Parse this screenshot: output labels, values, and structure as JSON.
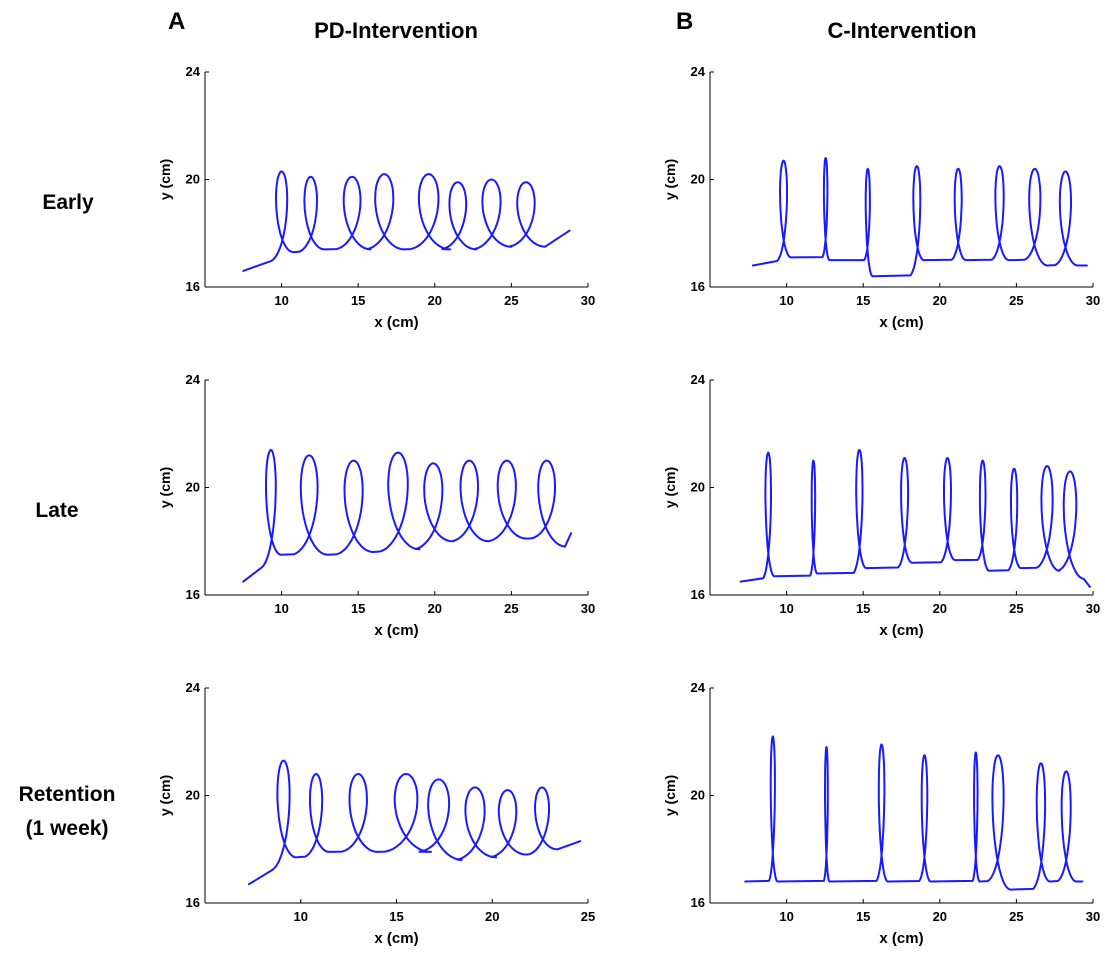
{
  "panel_letters": [
    "A",
    "B"
  ],
  "column_titles": [
    "PD-Intervention",
    "C-Intervention"
  ],
  "row_labels": [
    [
      "Early"
    ],
    [
      "Late"
    ],
    [
      "Retention",
      "(1 week)"
    ]
  ],
  "colors": {
    "trace": "#1a1aff",
    "axis": "#000000"
  },
  "chart_data": [
    {
      "type": "line",
      "column": "PD-Intervention",
      "row": "Early",
      "xlabel": "x (cm)",
      "ylabel": "y (cm)",
      "xlim": [
        5,
        30
      ],
      "ylim": [
        16,
        24
      ],
      "xticks": [
        10,
        15,
        20,
        25,
        30
      ],
      "yticks": [
        16,
        20,
        24
      ],
      "series": [
        {
          "x0": 7.5,
          "y0": 16.6,
          "xend": 28.8,
          "yend": 18.1,
          "loops": [
            {
              "x": 10.8,
              "top": 20.3,
              "bottom": 17.3,
              "w": 1.6
            },
            {
              "x": 12.8,
              "top": 20.1,
              "bottom": 17.4,
              "w": 1.8
            },
            {
              "x": 15.8,
              "top": 20.1,
              "bottom": 17.4,
              "w": 2.4
            },
            {
              "x": 18.0,
              "top": 20.2,
              "bottom": 17.4,
              "w": 2.6
            },
            {
              "x": 21.0,
              "top": 20.2,
              "bottom": 17.4,
              "w": 2.8
            },
            {
              "x": 22.7,
              "top": 19.9,
              "bottom": 17.4,
              "w": 2.4
            },
            {
              "x": 25.0,
              "top": 20.0,
              "bottom": 17.5,
              "w": 2.6
            },
            {
              "x": 27.2,
              "top": 19.9,
              "bottom": 17.5,
              "w": 2.5
            }
          ]
        }
      ]
    },
    {
      "type": "line",
      "column": "C-Intervention",
      "row": "Early",
      "xlabel": "x (cm)",
      "ylabel": "y (cm)",
      "xlim": [
        5,
        30
      ],
      "ylim": [
        16,
        24
      ],
      "xticks": [
        10,
        15,
        20,
        25,
        30
      ],
      "yticks": [
        16,
        20,
        24
      ],
      "series": [
        {
          "x0": 7.8,
          "y0": 16.8,
          "xend": 29.6,
          "yend": 16.8,
          "loops": [
            {
              "x": 10.3,
              "top": 20.7,
              "bottom": 17.1,
              "w": 1.0
            },
            {
              "x": 12.8,
              "top": 20.8,
              "bottom": 17.0,
              "w": 0.5
            },
            {
              "x": 15.6,
              "top": 20.4,
              "bottom": 16.4,
              "w": 0.6
            },
            {
              "x": 19.0,
              "top": 20.5,
              "bottom": 17.0,
              "w": 1.0
            },
            {
              "x": 21.7,
              "top": 20.4,
              "bottom": 17.0,
              "w": 1.0
            },
            {
              "x": 24.5,
              "top": 20.5,
              "bottom": 17.0,
              "w": 1.2
            },
            {
              "x": 27.0,
              "top": 20.4,
              "bottom": 16.8,
              "w": 1.6
            },
            {
              "x": 29.0,
              "top": 20.3,
              "bottom": 16.8,
              "w": 1.6
            }
          ]
        }
      ]
    },
    {
      "type": "line",
      "column": "PD-Intervention",
      "row": "Late",
      "xlabel": "x (cm)",
      "ylabel": "y (cm)",
      "xlim": [
        5,
        30
      ],
      "ylim": [
        16,
        24
      ],
      "xticks": [
        10,
        15,
        20,
        25,
        30
      ],
      "yticks": [
        16,
        20,
        24
      ],
      "series": [
        {
          "x0": 7.5,
          "y0": 16.5,
          "xend": 28.9,
          "yend": 18.3,
          "loops": [
            {
              "x": 10.0,
              "top": 21.4,
              "bottom": 17.5,
              "w": 1.4
            },
            {
              "x": 13.0,
              "top": 21.2,
              "bottom": 17.5,
              "w": 2.4
            },
            {
              "x": 16.0,
              "top": 21.0,
              "bottom": 17.6,
              "w": 2.6
            },
            {
              "x": 19.0,
              "top": 21.3,
              "bottom": 17.7,
              "w": 2.8
            },
            {
              "x": 21.2,
              "top": 20.9,
              "bottom": 18.0,
              "w": 2.6
            },
            {
              "x": 23.5,
              "top": 21.0,
              "bottom": 18.0,
              "w": 2.5
            },
            {
              "x": 26.0,
              "top": 21.0,
              "bottom": 18.1,
              "w": 2.6
            },
            {
              "x": 28.5,
              "top": 21.0,
              "bottom": 17.8,
              "w": 2.4
            }
          ]
        }
      ]
    },
    {
      "type": "line",
      "column": "C-Intervention",
      "row": "Late",
      "xlabel": "x (cm)",
      "ylabel": "y (cm)",
      "xlim": [
        5,
        30
      ],
      "ylim": [
        16,
        24
      ],
      "xticks": [
        10,
        15,
        20,
        25,
        30
      ],
      "yticks": [
        16,
        20,
        24
      ],
      "series": [
        {
          "x0": 7.0,
          "y0": 16.5,
          "xend": 29.8,
          "yend": 16.3,
          "loops": [
            {
              "x": 9.2,
              "top": 21.3,
              "bottom": 16.7,
              "w": 0.8
            },
            {
              "x": 12.0,
              "top": 21.0,
              "bottom": 16.8,
              "w": 0.5
            },
            {
              "x": 15.2,
              "top": 21.4,
              "bottom": 17.0,
              "w": 0.9
            },
            {
              "x": 18.2,
              "top": 21.1,
              "bottom": 17.2,
              "w": 1.0
            },
            {
              "x": 21.0,
              "top": 21.1,
              "bottom": 17.3,
              "w": 1.0
            },
            {
              "x": 23.2,
              "top": 21.0,
              "bottom": 16.9,
              "w": 0.8
            },
            {
              "x": 25.3,
              "top": 20.7,
              "bottom": 17.0,
              "w": 0.9
            },
            {
              "x": 27.8,
              "top": 20.8,
              "bottom": 16.9,
              "w": 1.6
            },
            {
              "x": 29.4,
              "top": 20.6,
              "bottom": 16.6,
              "w": 1.8
            }
          ]
        }
      ]
    },
    {
      "type": "line",
      "column": "PD-Intervention",
      "row": "Retention (1 week)",
      "xlabel": "x (cm)",
      "ylabel": "y (cm)",
      "xlim": [
        5,
        25
      ],
      "ylim": [
        16,
        24
      ],
      "xticks": [
        10,
        15,
        20,
        25
      ],
      "yticks": [
        16,
        20,
        24
      ],
      "series": [
        {
          "x0": 7.3,
          "y0": 16.7,
          "xend": 24.6,
          "yend": 18.3,
          "loops": [
            {
              "x": 9.8,
              "top": 21.3,
              "bottom": 17.7,
              "w": 1.4
            },
            {
              "x": 11.5,
              "top": 20.8,
              "bottom": 17.9,
              "w": 1.4
            },
            {
              "x": 14.0,
              "top": 20.8,
              "bottom": 17.9,
              "w": 2.0
            },
            {
              "x": 16.8,
              "top": 20.8,
              "bottom": 17.9,
              "w": 2.6
            },
            {
              "x": 18.4,
              "top": 20.6,
              "bottom": 17.6,
              "w": 2.4
            },
            {
              "x": 20.2,
              "top": 20.3,
              "bottom": 17.7,
              "w": 2.2
            },
            {
              "x": 21.8,
              "top": 20.2,
              "bottom": 17.8,
              "w": 2.0
            },
            {
              "x": 23.4,
              "top": 20.3,
              "bottom": 18.0,
              "w": 1.6
            }
          ]
        }
      ]
    },
    {
      "type": "line",
      "column": "C-Intervention",
      "row": "Retention (1 week)",
      "xlabel": "x (cm)",
      "ylabel": "y (cm)",
      "xlim": [
        5,
        30
      ],
      "ylim": [
        16,
        24
      ],
      "xticks": [
        10,
        15,
        20,
        25,
        30
      ],
      "yticks": [
        16,
        20,
        24
      ],
      "series": [
        {
          "x0": 7.3,
          "y0": 16.8,
          "xend": 29.3,
          "yend": 16.8,
          "loops": [
            {
              "x": 9.4,
              "top": 22.2,
              "bottom": 16.8,
              "w": 0.6
            },
            {
              "x": 12.8,
              "top": 21.8,
              "bottom": 16.8,
              "w": 0.4
            },
            {
              "x": 16.6,
              "top": 21.9,
              "bottom": 16.8,
              "w": 0.8
            },
            {
              "x": 19.4,
              "top": 21.5,
              "bottom": 16.8,
              "w": 0.8
            },
            {
              "x": 22.6,
              "top": 21.6,
              "bottom": 16.8,
              "w": 0.5
            },
            {
              "x": 24.6,
              "top": 21.5,
              "bottom": 16.5,
              "w": 1.6
            },
            {
              "x": 27.2,
              "top": 21.2,
              "bottom": 16.8,
              "w": 1.2
            },
            {
              "x": 28.9,
              "top": 20.9,
              "bottom": 16.8,
              "w": 1.3
            }
          ]
        }
      ]
    }
  ]
}
